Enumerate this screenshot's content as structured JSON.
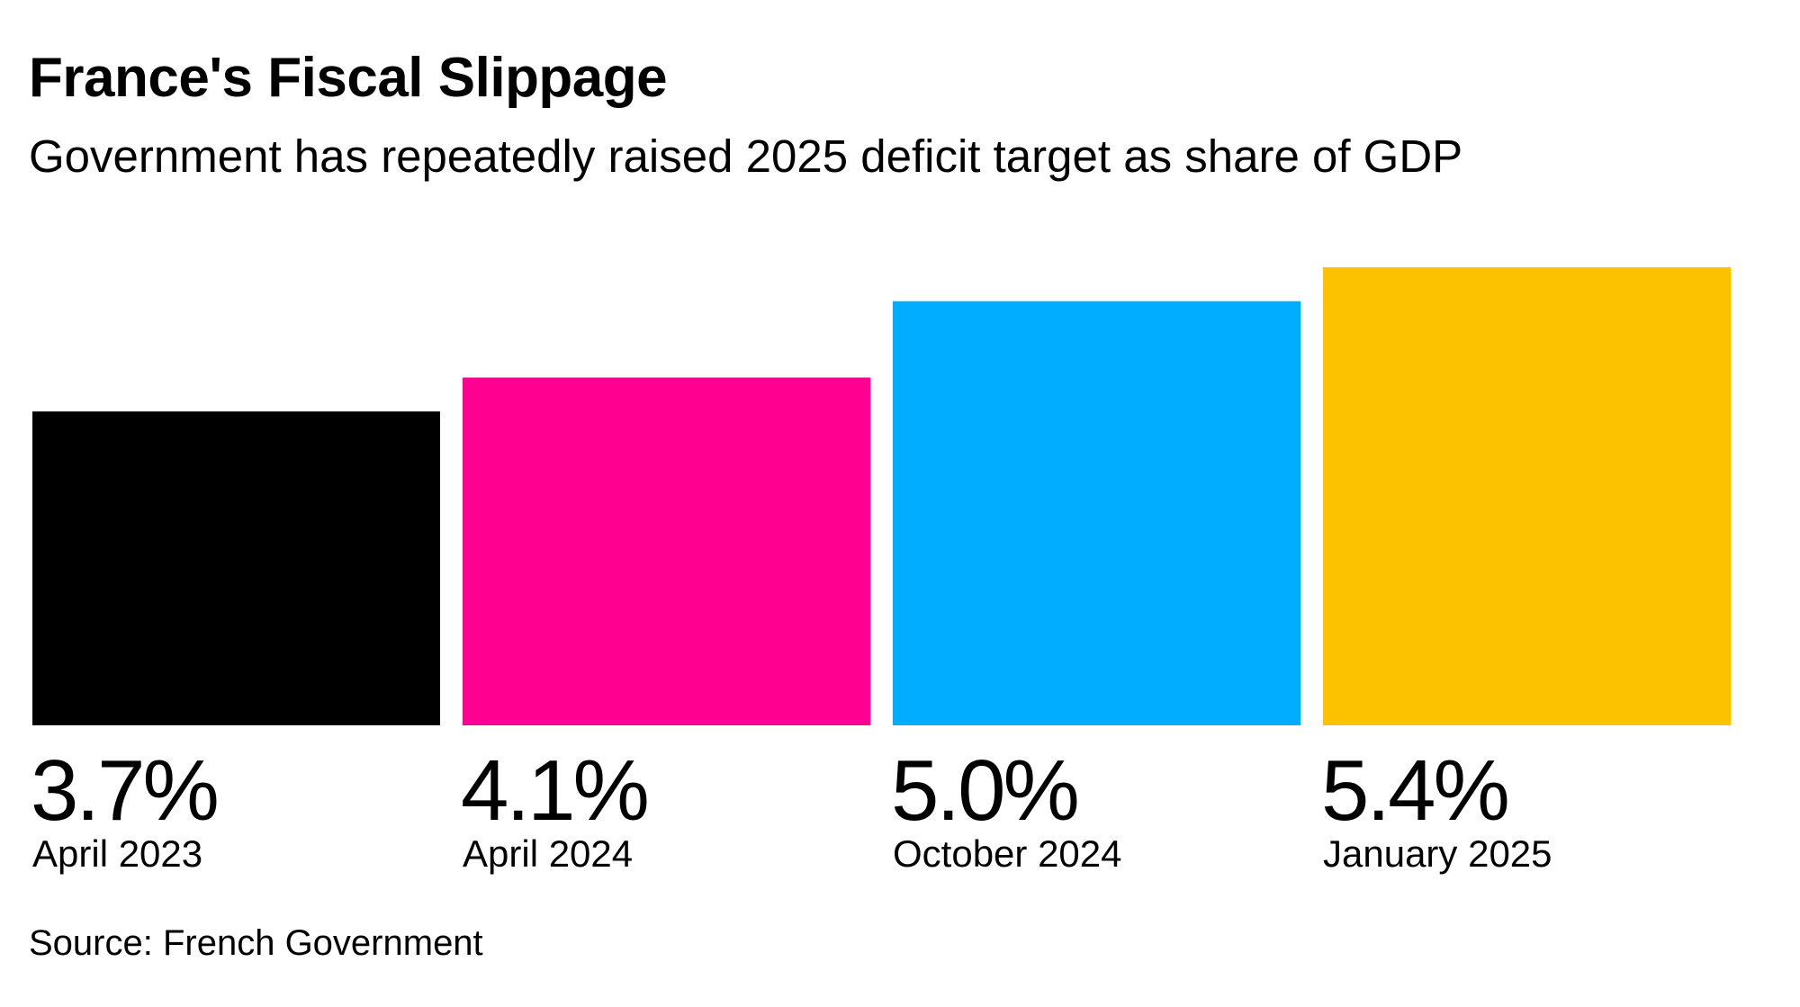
{
  "title": "France's Fiscal Slippage",
  "subtitle": "Government has repeatedly raised 2025 deficit target as share of GDP",
  "source": "Source: French Government",
  "chart_data": {
    "type": "bar",
    "categories": [
      "April 2023",
      "April 2024",
      "October 2024",
      "January 2025"
    ],
    "values": [
      3.7,
      4.1,
      5.0,
      5.4
    ],
    "value_labels": [
      "3.7%",
      "4.1%",
      "5.0%",
      "5.4%"
    ],
    "colors": [
      "#000000",
      "#ff0090",
      "#00adff",
      "#fcc200"
    ],
    "title": "France's Fiscal Slippage",
    "subtitle": "Government has repeatedly raised 2025 deficit target as share of GDP",
    "xlabel": "",
    "ylabel": "",
    "ylim": [
      0,
      5.4
    ],
    "grid": false,
    "legend": "none"
  }
}
